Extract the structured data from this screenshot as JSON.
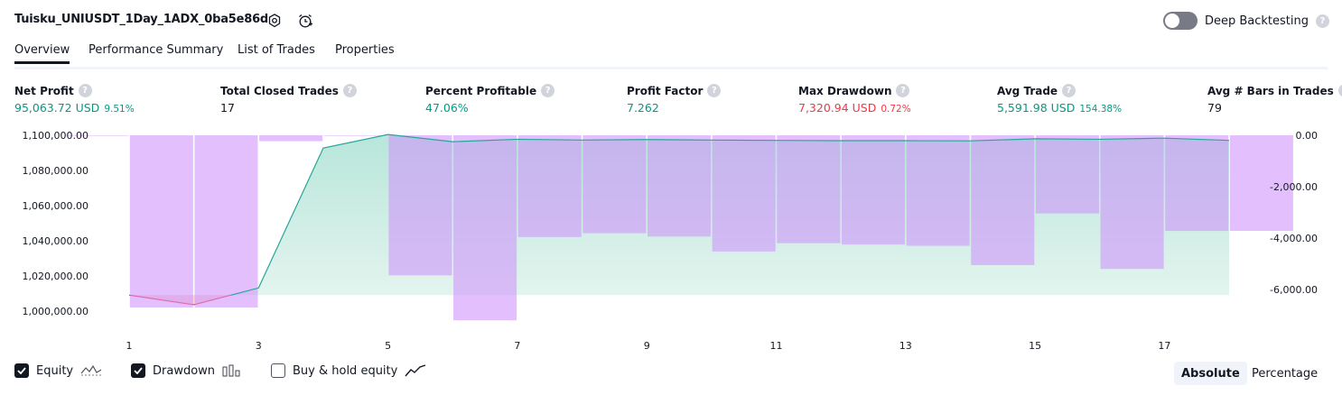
{
  "header": {
    "title": "Tuisku_UNIUSDT_1Day_1ADX_0ba5e86d",
    "deep_backtesting_label": "Deep Backtesting",
    "help_glyph": "?"
  },
  "tabs": [
    {
      "label": "Overview"
    },
    {
      "label": "Performance Summary"
    },
    {
      "label": "List of Trades"
    },
    {
      "label": "Properties"
    }
  ],
  "metrics": {
    "net_profit": {
      "label": "Net Profit",
      "value": "95,063.72 USD",
      "pct": "9.51%"
    },
    "total_closed_trades": {
      "label": "Total Closed Trades",
      "value": "17"
    },
    "percent_profitable": {
      "label": "Percent Profitable",
      "value": "47.06%"
    },
    "profit_factor": {
      "label": "Profit Factor",
      "value": "7.262"
    },
    "max_drawdown": {
      "label": "Max Drawdown",
      "value": "7,320.94 USD",
      "pct": "0.72%"
    },
    "avg_trade": {
      "label": "Avg Trade",
      "value": "5,591.98 USD",
      "pct": "154.38%"
    },
    "avg_bars": {
      "label": "Avg # Bars in Trades",
      "value": "79"
    }
  },
  "legend": {
    "equity": "Equity",
    "drawdown": "Drawdown",
    "buy_hold": "Buy & hold equity",
    "absolute": "Absolute",
    "percentage": "Percentage"
  },
  "colors": {
    "equity_line": "#26a69a",
    "equity_fill": "#c8ebe2",
    "drawdown_bar": "#ce93fb",
    "below_initial": "#f23645",
    "positive": "#089981",
    "negative": "#f23645"
  },
  "chart_data": {
    "type": "area",
    "x_ticks": [
      "1",
      "3",
      "5",
      "7",
      "9",
      "11",
      "13",
      "15",
      "17"
    ],
    "y_left_ticks": [
      "1,100,000.00",
      "1,080,000.00",
      "1,060,000.00",
      "1,040,000.00",
      "1,020,000.00",
      "1,000,000.00"
    ],
    "y_right_ticks": [
      "0.00",
      "-2,000.00",
      "-4,000.00",
      "-6,000.00"
    ],
    "y_left_range": [
      990000,
      1100000
    ],
    "y_right_range": [
      -7500,
      0
    ],
    "x_range": [
      0.5,
      18.5
    ],
    "series": [
      {
        "name": "Equity",
        "axis": "left",
        "x": [
          1,
          2,
          3,
          4,
          5,
          6,
          7,
          8,
          9,
          10,
          11,
          12,
          13,
          14,
          15,
          16,
          17,
          18
        ],
        "values": [
          1000000,
          994000,
          1004500,
          1092000,
          1100500,
          1096000,
          1097500,
          1097000,
          1097300,
          1097000,
          1096800,
          1096600,
          1096600,
          1096500,
          1097800,
          1097500,
          1098200,
          1096800
        ]
      },
      {
        "name": "Drawdown",
        "axis": "right",
        "x": [
          0,
          1,
          2,
          3,
          4,
          5,
          6,
          7,
          8,
          9,
          10,
          11,
          12,
          13,
          14,
          15,
          16,
          17,
          18
        ],
        "values": [
          -20,
          -6700,
          -6700,
          -230,
          -20,
          -5450,
          -7200,
          -3960,
          -3810,
          -3940,
          -4520,
          -4200,
          -4250,
          -4300,
          -5050,
          -3040,
          -5200,
          -3720,
          -3720
        ]
      }
    ]
  }
}
